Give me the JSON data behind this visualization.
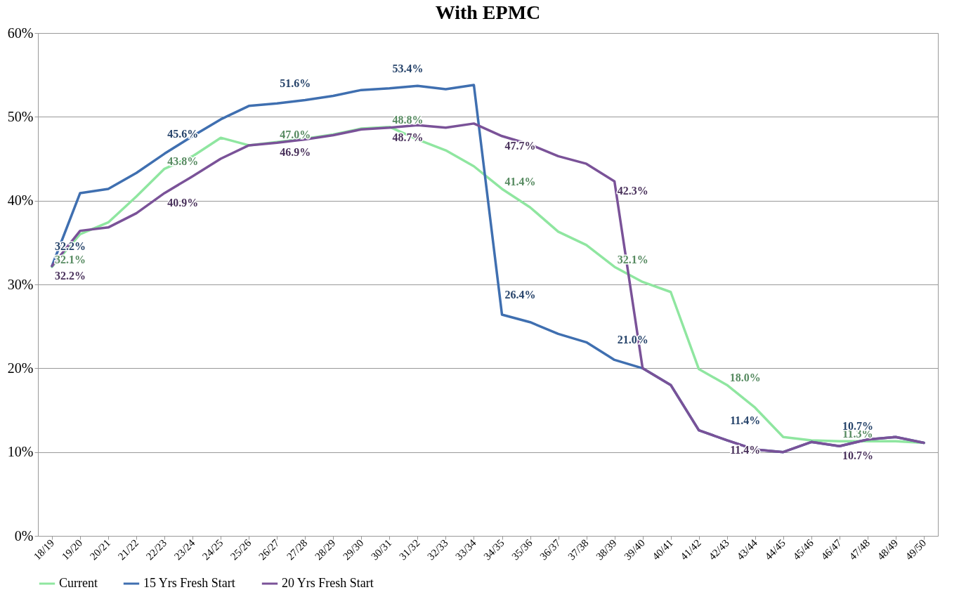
{
  "chart_data": {
    "type": "line",
    "title": "With EPMC",
    "categories": [
      "18/19",
      "19/20",
      "20/21",
      "21/22",
      "22/23",
      "23/24",
      "24/25",
      "25/26",
      "26/27",
      "27/28",
      "28/29",
      "29/30",
      "30/31",
      "31/32",
      "32/33",
      "33/34",
      "34/35",
      "35/36",
      "36/37",
      "37/38",
      "38/39",
      "39/40",
      "40/41",
      "41/42",
      "42/43",
      "43/44",
      "44/45",
      "45/46",
      "46/47",
      "47/48",
      "48/49",
      "49/50"
    ],
    "series": [
      {
        "name": "Current",
        "color": "#8fe6a0",
        "values": [
          32.1,
          36.0,
          37.4,
          40.5,
          43.8,
          45.3,
          47.5,
          46.6,
          47.0,
          47.4,
          47.9,
          48.6,
          48.8,
          47.3,
          46.0,
          44.1,
          41.4,
          39.2,
          36.3,
          34.7,
          32.1,
          30.3,
          29.1,
          19.9,
          18.0,
          15.3,
          11.8,
          11.4,
          11.3,
          11.3,
          11.3,
          11.1
        ],
        "value_labels": [
          "32.1%",
          null,
          null,
          null,
          "43.8%",
          null,
          null,
          null,
          "47.0%",
          null,
          null,
          null,
          "48.8%",
          null,
          null,
          null,
          "41.4%",
          null,
          null,
          null,
          "32.1%",
          null,
          null,
          null,
          "18.0%",
          null,
          null,
          null,
          "11.3%",
          null,
          null,
          null
        ]
      },
      {
        "name": "15 Yrs Fresh Start",
        "color": "#3f6fb0",
        "values": [
          32.2,
          40.9,
          41.4,
          43.3,
          45.6,
          47.7,
          49.7,
          51.3,
          51.6,
          52.0,
          52.5,
          53.2,
          53.4,
          53.7,
          53.3,
          53.8,
          26.4,
          25.5,
          24.1,
          23.1,
          21.0,
          20.0,
          18.0,
          12.6,
          11.4,
          10.3,
          10.0,
          11.2,
          10.7,
          11.5,
          11.8,
          11.1
        ],
        "value_labels": [
          "32.2%",
          null,
          null,
          null,
          "45.6%",
          null,
          null,
          null,
          "51.6%",
          null,
          null,
          null,
          "53.4%",
          null,
          null,
          null,
          "26.4%",
          null,
          null,
          null,
          "21.0%",
          null,
          null,
          null,
          "11.4%",
          null,
          null,
          null,
          "10.7%",
          null,
          null,
          null
        ]
      },
      {
        "name": "20 Yrs Fresh Start",
        "color": "#7a5298",
        "values": [
          32.2,
          36.4,
          36.8,
          38.5,
          40.9,
          42.9,
          45.0,
          46.6,
          46.9,
          47.3,
          47.8,
          48.5,
          48.7,
          49.0,
          48.7,
          49.2,
          47.7,
          46.7,
          45.3,
          44.4,
          42.3,
          20.0,
          18.0,
          12.6,
          11.4,
          10.3,
          10.0,
          11.2,
          10.7,
          11.5,
          11.8,
          11.1
        ],
        "value_labels": [
          "32.2%",
          null,
          null,
          null,
          "40.9%",
          null,
          null,
          null,
          "46.9%",
          null,
          null,
          null,
          "48.7%",
          null,
          null,
          null,
          "47.7%",
          null,
          null,
          null,
          "42.3%",
          null,
          null,
          null,
          "11.4%",
          null,
          null,
          null,
          "10.7%",
          null,
          null,
          null
        ]
      }
    ],
    "ylim": [
      0,
      60
    ],
    "yticks": [
      {
        "value": 0,
        "label": "0%"
      },
      {
        "value": 10,
        "label": "10%"
      },
      {
        "value": 20,
        "label": "20%"
      },
      {
        "value": 30,
        "label": "30%"
      },
      {
        "value": 40,
        "label": "40%"
      },
      {
        "value": 50,
        "label": "50%"
      },
      {
        "value": 60,
        "label": "60%"
      }
    ],
    "grid": "y",
    "legend": "bottom",
    "marker": "none",
    "line_style": "solid"
  }
}
